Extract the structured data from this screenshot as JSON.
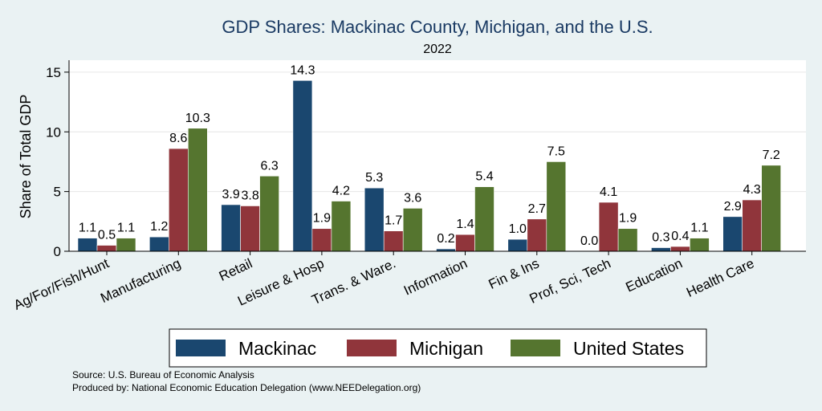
{
  "chart_data": {
    "type": "bar",
    "title": "GDP Shares: Mackinac County, Michigan, and the U.S.",
    "subtitle": "2022",
    "ylabel": "Share of Total GDP",
    "xlabel": "",
    "ylim": [
      0,
      16
    ],
    "yticks": [
      0,
      5,
      10,
      15
    ],
    "grid": true,
    "legend_position": "bottom",
    "categories": [
      "Ag/For/Fish/Hunt",
      "Manufacturing",
      "Retail",
      "Leisure & Hosp",
      "Trans. & Ware.",
      "Information",
      "Fin & Ins",
      "Prof, Sci, Tech",
      "Education",
      "Health Care"
    ],
    "series": [
      {
        "name": "Mackinac",
        "color": "#1a476f",
        "values": [
          1.1,
          1.2,
          3.9,
          14.3,
          5.3,
          0.2,
          1.0,
          0.0,
          0.3,
          2.9
        ],
        "labels": [
          "1.1",
          "1.2",
          "3.9",
          "14.3",
          "5.3",
          "0.2",
          "1.0",
          "0.0",
          "0.3",
          "2.9"
        ]
      },
      {
        "name": "Michigan",
        "color": "#90353b",
        "values": [
          0.5,
          8.6,
          3.8,
          1.9,
          1.7,
          1.4,
          2.7,
          4.1,
          0.4,
          4.3
        ],
        "labels": [
          "0.5",
          "8.6",
          "3.8",
          "1.9",
          "1.7",
          "1.4",
          "2.7",
          "4.1",
          "0.4",
          "4.3"
        ]
      },
      {
        "name": "United States",
        "color": "#55752f",
        "values": [
          1.1,
          10.3,
          6.3,
          4.2,
          3.6,
          5.4,
          7.5,
          1.9,
          1.1,
          7.2
        ],
        "labels": [
          "1.1",
          "10.3",
          "6.3",
          "4.2",
          "3.6",
          "5.4",
          "7.5",
          "1.9",
          "1.1",
          "7.2"
        ]
      }
    ]
  },
  "notes": {
    "source": "Source: U.S. Bureau of Economic Analysis",
    "produced_by": "Produced by: National Economic Education Delegation (www.NEEDelegation.org)"
  }
}
